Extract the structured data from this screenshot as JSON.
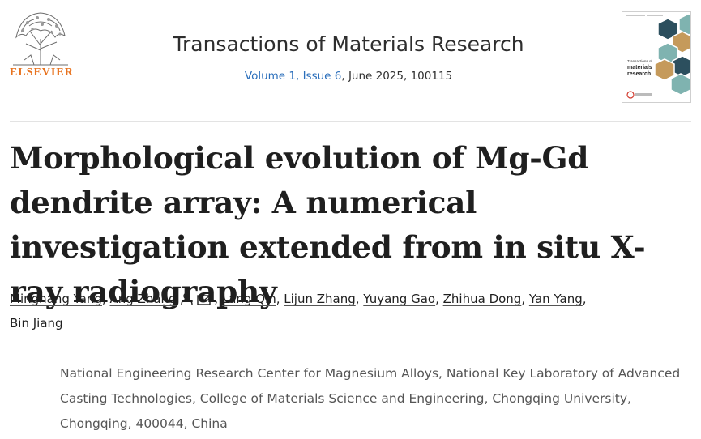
{
  "publisher": {
    "name": "ELSEVIER",
    "logo_icon": "tree-logo-icon"
  },
  "journal": {
    "title": "Transactions of Materials Research",
    "volume_issue": "Volume 1, Issue 6",
    "date_id": ", June 2025, 100115"
  },
  "article": {
    "title": "Morphological evolution of Mg-Gd dendrite array: A numerical investigation extended from in situ X-ray radiography"
  },
  "authors": [
    {
      "name": "Minghang Yang"
    },
    {
      "name": "Ang Zhang",
      "icons": [
        "person-icon",
        "email-icon"
      ]
    },
    {
      "name": "Lang Qin"
    },
    {
      "name": "Lijun Zhang"
    },
    {
      "name": "Yuyang Gao"
    },
    {
      "name": "Zhihua Dong"
    },
    {
      "name": "Yan Yang"
    },
    {
      "name": "Bin Jiang"
    }
  ],
  "affiliation": "National Engineering Research Center for Magnesium Alloys, National Key Laboratory of Advanced Casting Technologies, College of Materials Science and Engineering, Chongqing University, Chongqing, 400044, China",
  "colors": {
    "publisher": "#e8731f",
    "link": "#2a6ebb",
    "muted": "#555555"
  }
}
